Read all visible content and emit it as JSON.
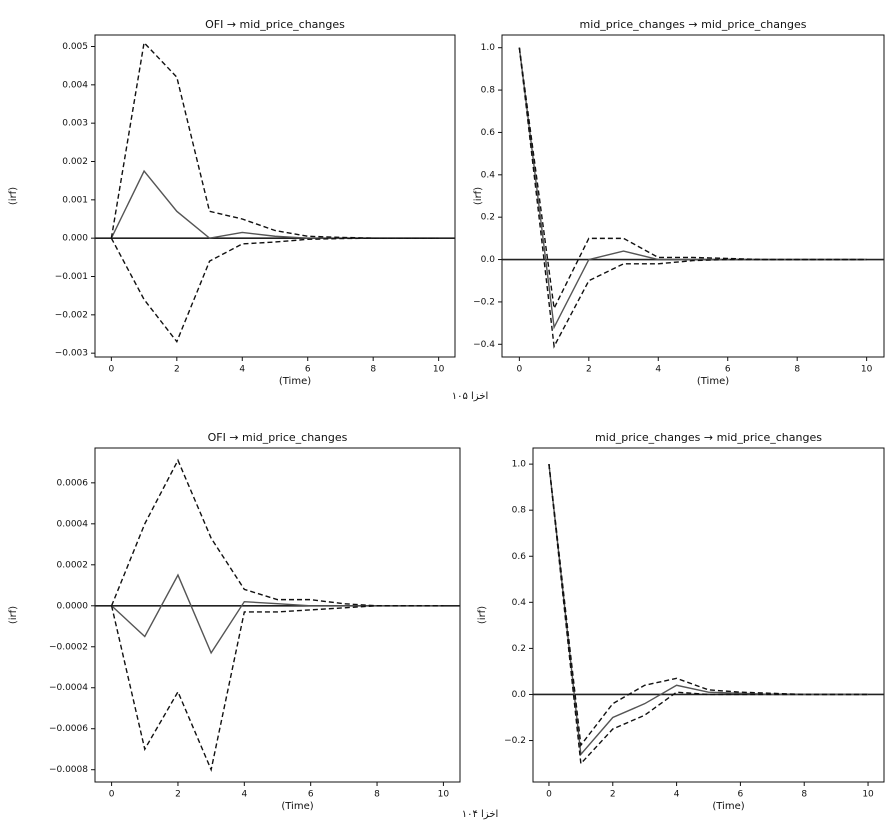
{
  "chart_data": [
    {
      "type": "line",
      "title": "OFI → mid_price_changes",
      "xlabel": "(Time)",
      "ylabel": "(irf)",
      "x": [
        0,
        1,
        2,
        3,
        4,
        5,
        6,
        7,
        8,
        9,
        10
      ],
      "xlim": [
        -0.5,
        10.5
      ],
      "xticks": [
        0,
        2,
        4,
        6,
        8,
        10
      ],
      "ylim": [
        -0.0031,
        0.0053
      ],
      "yticks": [
        {
          "value": -0.003,
          "label": "−0.003"
        },
        {
          "value": -0.002,
          "label": "−0.002"
        },
        {
          "value": -0.001,
          "label": "−0.001"
        },
        {
          "value": 0,
          "label": "0.000"
        },
        0.001,
        0.002,
        0.003,
        0.004,
        0.005
      ],
      "hline": 0,
      "series": [
        {
          "color": "#555555",
          "style": "solid",
          "values": [
            0,
            0.00175,
            0.0007,
            0,
            0.00015,
            5e-05,
            0,
            0,
            0,
            0,
            0
          ]
        },
        {
          "color": "#111111",
          "style": "dashed",
          "values": [
            0,
            0.0051,
            0.0042,
            0.0007,
            0.0005,
            0.0002,
            5e-05,
            2e-05,
            0,
            0,
            0
          ]
        },
        {
          "color": "#111111",
          "style": "dashed",
          "values": [
            0,
            -0.0016,
            -0.0027,
            -0.0006,
            -0.00015,
            -0.0001,
            -3e-05,
            -1e-05,
            0,
            0,
            0
          ]
        }
      ]
    },
    {
      "type": "line",
      "title": "mid_price_changes → mid_price_changes",
      "xlabel": "(Time)",
      "ylabel": "(irf)",
      "x": [
        0,
        1,
        2,
        3,
        4,
        5,
        6,
        7,
        8,
        9,
        10
      ],
      "xlim": [
        -0.5,
        10.5
      ],
      "xticks": [
        0,
        2,
        4,
        6,
        8,
        10
      ],
      "ylim": [
        -0.46,
        1.06
      ],
      "yticks": [
        {
          "value": -0.4,
          "label": "−0.4"
        },
        {
          "value": -0.2,
          "label": "−0.2"
        },
        {
          "value": 0,
          "label": "0.0"
        },
        0.2,
        0.4,
        0.6,
        0.8,
        {
          "value": 1,
          "label": "1.0"
        }
      ],
      "hline": 0,
      "series": [
        {
          "color": "#555555",
          "style": "solid",
          "values": [
            1,
            -0.32,
            0,
            0.04,
            0,
            0,
            0,
            0,
            0,
            0,
            0
          ]
        },
        {
          "color": "#111111",
          "style": "dashed",
          "values": [
            1,
            -0.23,
            0.1,
            0.1,
            0.01,
            0.01,
            0.005,
            0,
            0,
            0,
            0
          ]
        },
        {
          "color": "#111111",
          "style": "dashed",
          "values": [
            1,
            -0.41,
            -0.1,
            -0.02,
            -0.02,
            -0.005,
            0,
            0,
            0,
            0,
            0
          ]
        }
      ]
    },
    {
      "type": "line",
      "title": "OFI → mid_price_changes",
      "xlabel": "(Time)",
      "ylabel": "(irf)",
      "x": [
        0,
        1,
        2,
        3,
        4,
        5,
        6,
        7,
        8,
        9,
        10
      ],
      "xlim": [
        -0.5,
        10.5
      ],
      "xticks": [
        0,
        2,
        4,
        6,
        8,
        10
      ],
      "ylim": [
        -0.00086,
        0.00077
      ],
      "yticks": [
        {
          "value": -0.0008,
          "label": "−0.0008"
        },
        {
          "value": -0.0006,
          "label": "−0.0006"
        },
        {
          "value": -0.0004,
          "label": "−0.0004"
        },
        {
          "value": -0.0002,
          "label": "−0.0002"
        },
        {
          "value": 0,
          "label": "0.0000"
        },
        0.0002,
        0.0004,
        0.0006
      ],
      "hline": 0,
      "series": [
        {
          "color": "#555555",
          "style": "solid",
          "values": [
            0,
            -0.00015,
            0.00015,
            -0.00023,
            2e-05,
            1e-05,
            0,
            0,
            0,
            0,
            0
          ]
        },
        {
          "color": "#111111",
          "style": "dashed",
          "values": [
            0,
            0.0004,
            0.00071,
            0.00033,
            8e-05,
            3e-05,
            3e-05,
            1e-05,
            0,
            0,
            0
          ]
        },
        {
          "color": "#111111",
          "style": "dashed",
          "values": [
            0,
            -0.0007,
            -0.00042,
            -0.0008,
            -3e-05,
            -3e-05,
            -2e-05,
            -1e-05,
            0,
            0,
            0
          ]
        }
      ]
    },
    {
      "type": "line",
      "title": "mid_price_changes → mid_price_changes",
      "xlabel": "(Time)",
      "ylabel": "(irf)",
      "x": [
        0,
        1,
        2,
        3,
        4,
        5,
        6,
        7,
        8,
        9,
        10
      ],
      "xlim": [
        -0.5,
        10.5
      ],
      "xticks": [
        0,
        2,
        4,
        6,
        8,
        10
      ],
      "ylim": [
        -0.38,
        1.07
      ],
      "yticks": [
        {
          "value": -0.2,
          "label": "−0.2"
        },
        {
          "value": 0,
          "label": "0.0"
        },
        0.2,
        0.4,
        0.6,
        0.8,
        {
          "value": 1,
          "label": "1.0"
        }
      ],
      "hline": 0,
      "series": [
        {
          "color": "#555555",
          "style": "solid",
          "values": [
            1,
            -0.26,
            -0.1,
            -0.04,
            0.04,
            0.01,
            0.005,
            0,
            0,
            0,
            0
          ]
        },
        {
          "color": "#111111",
          "style": "dashed",
          "values": [
            1,
            -0.22,
            -0.04,
            0.04,
            0.07,
            0.02,
            0.01,
            0.005,
            0,
            0,
            0
          ]
        },
        {
          "color": "#111111",
          "style": "dashed",
          "values": [
            1,
            -0.3,
            -0.15,
            -0.09,
            0.01,
            0,
            0,
            0,
            0,
            0,
            0
          ]
        }
      ]
    }
  ],
  "captions": [
    "اخزا ۱۰۵",
    "اخزا ۱۰۴"
  ]
}
